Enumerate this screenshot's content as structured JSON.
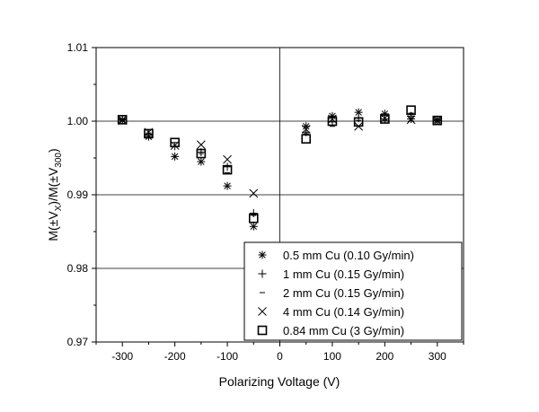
{
  "chart_data": {
    "type": "scatter",
    "xlabel": "Polarizing Voltage (V)",
    "ylabel_parts": [
      "M(±V",
      "X",
      ")/M(±V",
      "300",
      ")"
    ],
    "xlim": [
      -350,
      350
    ],
    "ylim": [
      0.97,
      1.01
    ],
    "x_ticks": [
      -300,
      -200,
      -100,
      0,
      100,
      200,
      300
    ],
    "y_ticks": [
      0.97,
      0.98,
      0.99,
      1.0,
      1.01
    ],
    "x_tick_labels": [
      "-300",
      "-200",
      "-100",
      "0",
      "100",
      "200",
      "300"
    ],
    "y_tick_labels": [
      "0.97",
      "0.98",
      "0.99",
      "1.00",
      "1.01"
    ],
    "grid": "horizontal gridlines at y ticks; vertical line at x = 0",
    "legend_placement": "bottom-right",
    "series": [
      {
        "name": "0.5 mm Cu (0.10 Gy/min)",
        "marker": "asterisk",
        "points": [
          [
            -300,
            1.0002
          ],
          [
            -250,
            0.9979
          ],
          [
            -200,
            0.9952
          ],
          [
            -150,
            0.9945
          ],
          [
            -100,
            0.9912
          ],
          [
            -50,
            0.9857
          ],
          [
            50,
            0.9993
          ],
          [
            100,
            1.0007
          ],
          [
            150,
            1.0012
          ],
          [
            200,
            1.001
          ],
          [
            250,
            1.0003
          ],
          [
            300,
            1.0002
          ]
        ]
      },
      {
        "name": "1 mm Cu (0.15 Gy/min)",
        "marker": "plus",
        "points": [
          [
            -300,
            1.0003
          ],
          [
            -250,
            0.9982
          ],
          [
            -200,
            0.9966
          ],
          [
            -150,
            0.9958
          ],
          [
            -100,
            0.9938
          ],
          [
            -50,
            0.9875
          ],
          [
            50,
            0.9985
          ],
          [
            100,
            0.9999
          ],
          [
            150,
            1.0004
          ],
          [
            200,
            1.0003
          ],
          [
            250,
            1.0007
          ],
          [
            300,
            1.0001
          ]
        ]
      },
      {
        "name": "2 mm Cu (0.15 Gy/min)",
        "marker": "dash",
        "points": [
          [
            -300,
            1.0001
          ],
          [
            -250,
            0.9984
          ],
          [
            -200,
            0.9971
          ],
          [
            -150,
            0.9956
          ],
          [
            -100,
            0.993
          ],
          [
            -50,
            0.9872
          ],
          [
            50,
            0.9983
          ],
          [
            100,
            0.9993
          ],
          [
            150,
            1.0001
          ],
          [
            200,
            1.0001
          ],
          [
            250,
            1.0011
          ],
          [
            300,
            1.0001
          ]
        ]
      },
      {
        "name": "4 mm Cu (0.14 Gy/min)",
        "marker": "x",
        "points": [
          [
            -300,
            1.0001
          ],
          [
            -250,
            0.9985
          ],
          [
            -200,
            0.9967
          ],
          [
            -150,
            0.9968
          ],
          [
            -100,
            0.9948
          ],
          [
            -50,
            0.9902
          ],
          [
            50,
            0.9989
          ],
          [
            100,
            1.0003
          ],
          [
            150,
            0.9993
          ],
          [
            200,
            1.0004
          ],
          [
            250,
            1.0002
          ],
          [
            300,
            1.0
          ]
        ]
      },
      {
        "name": "0.84 mm Cu (3 Gy/min)",
        "marker": "open-square",
        "points": [
          [
            -300,
            1.0002
          ],
          [
            -250,
            0.9983
          ],
          [
            -200,
            0.9971
          ],
          [
            -150,
            0.9956
          ],
          [
            -100,
            0.9934
          ],
          [
            -50,
            0.9868
          ],
          [
            50,
            0.9976
          ],
          [
            100,
            1.0
          ],
          [
            150,
            0.9999
          ],
          [
            200,
            1.0003
          ],
          [
            250,
            1.0015
          ],
          [
            300,
            1.0001
          ]
        ]
      }
    ]
  }
}
